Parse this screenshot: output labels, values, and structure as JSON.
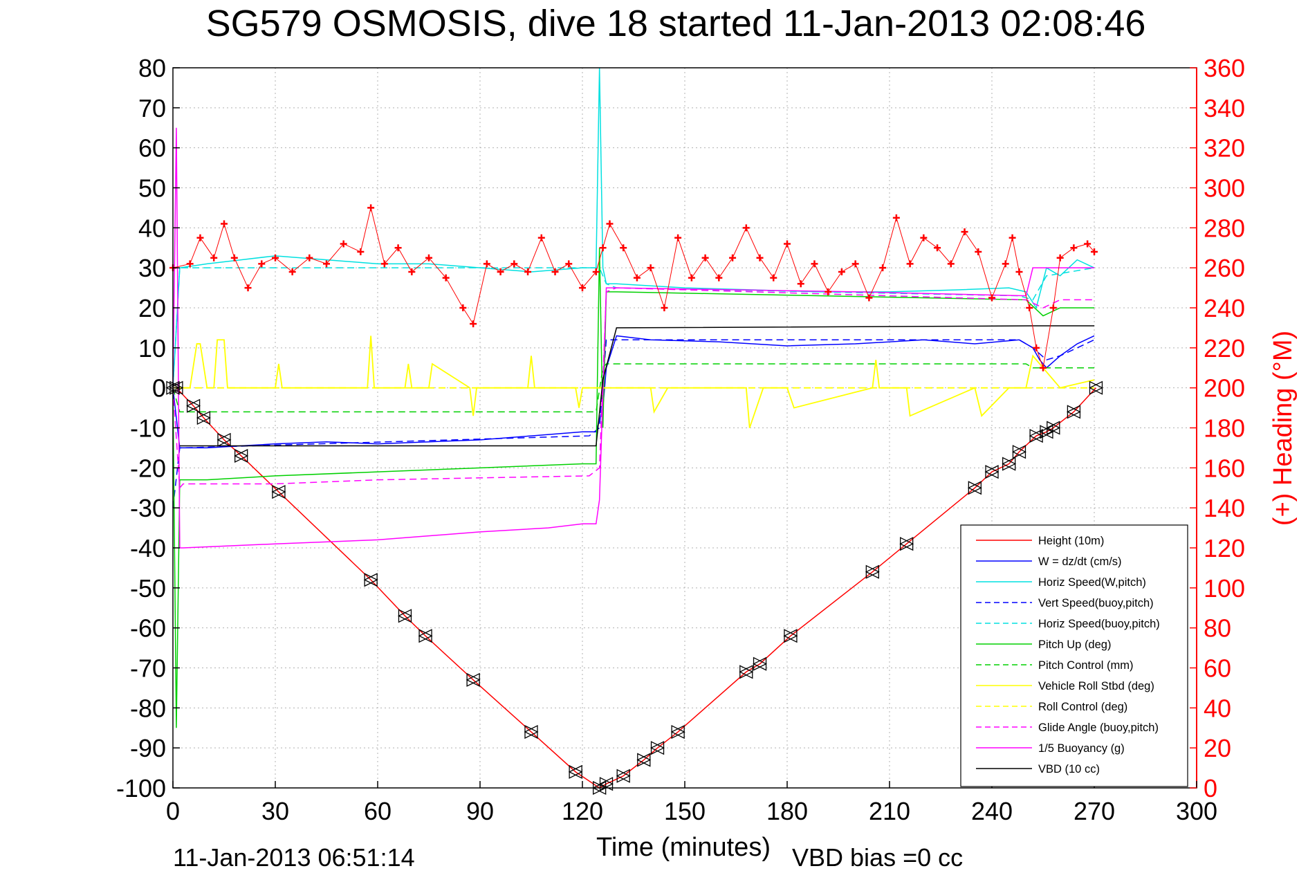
{
  "chart_data": {
    "type": "line",
    "title": "SG579 OSMOSIS, dive 18 started 11-Jan-2013 02:08:46",
    "xlabel": "Time (minutes)",
    "ylabel_right": "(+) Heading (°M)",
    "footer_date": "11-Jan-2013 06:51:14",
    "footer_bias": "VBD bias =0 cc",
    "xlim": [
      0,
      300
    ],
    "ylim": [
      -100,
      80
    ],
    "ylim_right": [
      0,
      360
    ],
    "xticks": [
      0,
      30,
      60,
      90,
      120,
      150,
      180,
      210,
      240,
      270,
      300
    ],
    "yticks": [
      -100,
      -90,
      -80,
      -70,
      -60,
      -50,
      -40,
      -30,
      -20,
      -10,
      0,
      10,
      20,
      30,
      40,
      50,
      60,
      70,
      80
    ],
    "yticks_right": [
      0,
      20,
      40,
      60,
      80,
      100,
      120,
      140,
      160,
      180,
      200,
      220,
      240,
      260,
      280,
      300,
      320,
      340,
      360
    ],
    "grid": true,
    "legend_position": "bottom-right",
    "series": [
      {
        "name": "Height (10m)",
        "color": "#ff0000",
        "style": "solid",
        "x": [
          0,
          1,
          6,
          9,
          15,
          20,
          31,
          58,
          68,
          74,
          88,
          105,
          118,
          125,
          127,
          132,
          138,
          142,
          148,
          168,
          172,
          181,
          205,
          215,
          235,
          240,
          245,
          248,
          253,
          256,
          258,
          264,
          270.5
        ],
        "y": [
          0,
          0,
          -4.5,
          -7.5,
          -13,
          -17,
          -26,
          -48,
          -57,
          -62,
          -73,
          -86,
          -96,
          -100,
          -99,
          -97,
          -93,
          -90,
          -86,
          -71,
          -69,
          -62,
          -46,
          -39,
          -25,
          -21,
          -19,
          -16,
          -12,
          -11,
          -10,
          -6,
          0
        ]
      },
      {
        "name": "W = dz/dt (cm/s)",
        "color": "#0000ff",
        "style": "solid",
        "x": [
          0,
          2,
          10,
          20,
          30,
          45,
          60,
          75,
          90,
          105,
          120,
          124,
          126,
          127,
          130,
          140,
          160,
          180,
          200,
          220,
          235,
          248,
          252,
          254,
          256,
          260,
          265,
          270
        ],
        "y": [
          0,
          -15,
          -15,
          -14.5,
          -14,
          -13.5,
          -14,
          -13.5,
          -13,
          -12,
          -11,
          -11,
          -5,
          5,
          13,
          12,
          11.5,
          10.5,
          11,
          12,
          11,
          12,
          10,
          7,
          5,
          8,
          11,
          13
        ]
      },
      {
        "name": "Horiz Speed(W,pitch)",
        "color": "#00e0e0",
        "style": "solid",
        "x": [
          0,
          2,
          10,
          20,
          30,
          45,
          60,
          75,
          90,
          105,
          120,
          124,
          125,
          126,
          127,
          130,
          150,
          170,
          190,
          210,
          230,
          245,
          250,
          253,
          256,
          260,
          265,
          270
        ],
        "y": [
          0,
          30,
          31,
          32,
          33,
          32,
          31,
          31,
          30,
          29,
          30,
          30,
          80,
          30,
          26,
          26,
          25,
          24.5,
          24,
          24,
          24.5,
          25,
          24,
          20,
          30,
          28,
          32,
          30
        ]
      },
      {
        "name": "Vert Speed(buoy,pitch)",
        "color": "#0000ff",
        "style": "dashed",
        "x": [
          0,
          2,
          3,
          122,
          125,
          127,
          130,
          248,
          252,
          256,
          260,
          270
        ],
        "y": [
          -30,
          -15,
          -15,
          -12,
          -10,
          12,
          12,
          12,
          10,
          7,
          8,
          12
        ]
      },
      {
        "name": "Horiz Speed(buoy,pitch)",
        "color": "#00e0e0",
        "style": "dashed",
        "x": [
          0,
          2,
          3,
          122,
          125,
          127,
          130,
          248,
          252,
          256,
          270
        ],
        "y": [
          0,
          30,
          30,
          30,
          30,
          26,
          25,
          23,
          22,
          28,
          30
        ]
      },
      {
        "name": "Pitch Up (deg)",
        "color": "#00d000",
        "style": "solid",
        "x": [
          0,
          1,
          2,
          3,
          10,
          30,
          60,
          90,
          120,
          124,
          125,
          126,
          127,
          128,
          130,
          250,
          255,
          260,
          270
        ],
        "y": [
          0,
          -85,
          -23,
          -23,
          -23,
          -22,
          -21,
          -20,
          -19,
          -19,
          35,
          -10,
          24,
          24,
          24,
          22,
          18,
          20,
          20
        ]
      },
      {
        "name": "Pitch Control (mm)",
        "color": "#00d000",
        "style": "dashed",
        "x": [
          0,
          2,
          3,
          124,
          126,
          127,
          250,
          252,
          270
        ],
        "y": [
          0,
          -6,
          -6,
          -6,
          5,
          6,
          6,
          5,
          5
        ]
      },
      {
        "name": "Vehicle Roll Stbd (deg)",
        "color": "#ffff00",
        "style": "solid",
        "x": [
          0,
          5,
          7,
          8,
          10,
          12,
          13,
          15,
          16,
          18,
          20,
          30,
          31,
          32,
          57,
          58,
          59,
          68,
          69,
          70,
          75,
          76,
          87,
          88,
          89,
          104,
          105,
          106,
          118,
          119,
          120,
          127,
          140,
          141,
          145,
          160,
          168,
          169,
          173,
          180,
          182,
          205,
          206,
          207,
          215,
          216,
          235,
          237,
          245,
          250,
          252,
          256,
          260,
          270
        ],
        "y": [
          0,
          0,
          11,
          11,
          0,
          0,
          12,
          12,
          0,
          0,
          0,
          0,
          6,
          0,
          0,
          13,
          0,
          0,
          6,
          0,
          0,
          6,
          0,
          -7,
          0,
          0,
          8,
          0,
          0,
          -5,
          0,
          0,
          0,
          -6,
          0,
          0,
          0,
          -10,
          0,
          0,
          -5,
          0,
          7,
          0,
          0,
          -7,
          0,
          -7,
          0,
          0,
          8,
          4,
          0,
          2
        ]
      },
      {
        "name": "Roll Control (deg)",
        "color": "#ffff00",
        "style": "dashed",
        "x": [
          0,
          270
        ],
        "y": [
          0,
          0
        ]
      },
      {
        "name": "Glide Angle (buoy,pitch)",
        "color": "#ff00ff",
        "style": "dashed",
        "x": [
          0,
          2,
          3,
          30,
          60,
          90,
          122,
          125,
          127,
          130,
          250,
          255,
          260,
          270
        ],
        "y": [
          0,
          -25,
          -24,
          -24,
          -23,
          -22.5,
          -22,
          -20,
          24,
          25,
          22,
          20,
          22,
          22
        ]
      },
      {
        "name": "1/5 Buoyancy (g)",
        "color": "#ff00ff",
        "style": "solid",
        "x": [
          0,
          1,
          2,
          3,
          30,
          60,
          90,
          110,
          120,
          124,
          125,
          127,
          130,
          200,
          250,
          252,
          270
        ],
        "y": [
          0,
          65,
          -40,
          -40,
          -39,
          -38,
          -36,
          -35,
          -34,
          -34,
          -28,
          25,
          25,
          24,
          23,
          30,
          30
        ]
      },
      {
        "name": "VBD (10 cc)",
        "color": "#000000",
        "style": "solid",
        "x": [
          2,
          124,
          126,
          130,
          252,
          253,
          270
        ],
        "y": [
          -14.5,
          -14.5,
          2,
          15,
          15.5,
          15.5,
          15.5
        ]
      },
      {
        "name": "Heading (°M)",
        "axis": "right",
        "color": "#ff0000",
        "style": "markers",
        "x": [
          0,
          5,
          8,
          12,
          15,
          18,
          22,
          26,
          30,
          35,
          40,
          45,
          50,
          55,
          58,
          62,
          66,
          70,
          75,
          80,
          85,
          88,
          92,
          96,
          100,
          104,
          108,
          112,
          116,
          120,
          124,
          126,
          128,
          132,
          136,
          140,
          144,
          148,
          152,
          156,
          160,
          164,
          168,
          172,
          176,
          180,
          184,
          188,
          192,
          196,
          200,
          204,
          208,
          212,
          216,
          220,
          224,
          228,
          232,
          236,
          240,
          244,
          246,
          248,
          251,
          253,
          255,
          258,
          260,
          264,
          268,
          270
        ],
        "y": [
          260,
          262,
          275,
          265,
          282,
          265,
          250,
          262,
          265,
          258,
          265,
          262,
          272,
          268,
          290,
          262,
          270,
          258,
          265,
          255,
          240,
          232,
          262,
          258,
          262,
          258,
          275,
          258,
          262,
          250,
          258,
          270,
          282,
          270,
          255,
          260,
          240,
          275,
          255,
          265,
          255,
          265,
          280,
          265,
          255,
          272,
          252,
          262,
          248,
          258,
          262,
          245,
          260,
          285,
          262,
          275,
          270,
          262,
          278,
          268,
          245,
          262,
          275,
          258,
          240,
          220,
          210,
          240,
          265,
          270,
          272,
          268
        ]
      }
    ]
  }
}
